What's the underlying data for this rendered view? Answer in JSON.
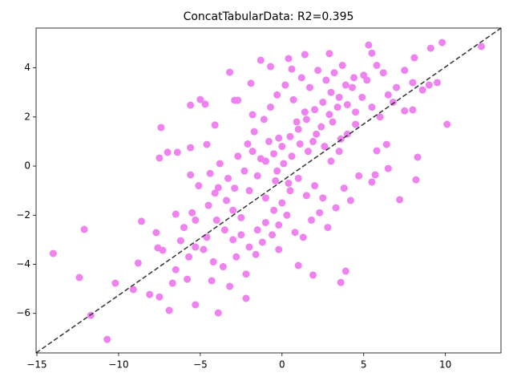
{
  "chart_data": {
    "type": "scatter",
    "title": "ConcatTabularData: R2=0.395",
    "color": "#ee82ee",
    "xlim": [
      -15.05,
      13.4
    ],
    "ylim": [
      -7.61,
      5.62
    ],
    "xticks": [
      {
        "value": -15,
        "label": "−15"
      },
      {
        "value": -10,
        "label": "−10"
      },
      {
        "value": -5,
        "label": "−5"
      },
      0,
      5,
      10
    ],
    "yticks": [
      {
        "value": -6,
        "label": "−6"
      },
      {
        "value": -4,
        "label": "−4"
      },
      {
        "value": -2,
        "label": "−2"
      },
      0,
      2,
      4
    ],
    "grid": false,
    "diagonal": {
      "x": [
        -15.05,
        13.4
      ],
      "y": [
        -7.61,
        5.62
      ],
      "color": "#333333"
    },
    "x": [
      -14.0,
      -12.4,
      -12.1,
      -11.7,
      -10.7,
      -10.2,
      -9.1,
      -8.8,
      -8.6,
      -8.1,
      -7.7,
      -7.6,
      -7.5,
      -7.4,
      -7.5,
      -7.3,
      -7.0,
      -6.9,
      -6.7,
      -6.5,
      -6.5,
      -6.4,
      -6.2,
      -5.8,
      -5.6,
      -5.6,
      -5.6,
      -5.3,
      -5.3,
      -5.0,
      -4.7,
      -4.6,
      -4.3,
      -3.9,
      -3.9,
      -4.1,
      -3.2,
      -2.9,
      -2.7,
      -2.2,
      -1.8,
      -1.9,
      -1.3,
      -0.7,
      -0.2,
      -0.2,
      0.4,
      0.6,
      1.4,
      1.9,
      2.9,
      3.9,
      5.3,
      5.5,
      7.2,
      8.2,
      8.3,
      9.8,
      10.1,
      12.2,
      9.5,
      9.1,
      8.1,
      8.0,
      7.5,
      5.8,
      6.4,
      5.7,
      5.5,
      6.5,
      3.6,
      1.0,
      -4.5,
      -4.0,
      -3.5,
      -3.0,
      -2.5,
      -2.0,
      -1.5,
      -1.0,
      -0.5,
      0,
      0.5,
      1.0,
      1.5,
      2.0,
      2.5,
      3.0,
      3.5,
      4.0,
      4.5,
      5.0,
      -3.0,
      -2.5,
      -2.0,
      -1.5,
      -1.0,
      -0.5,
      0,
      0.5,
      1.0,
      1.5,
      2.0,
      2.5,
      3.0,
      3.5,
      4.0,
      4.5,
      5.5,
      6.0,
      6.5,
      7.0,
      -4.8,
      -4.2,
      -3.6,
      -3.2,
      -2.8,
      -2.2,
      -1.6,
      -1.2,
      -0.6,
      -0.2,
      0.3,
      0.8,
      1.3,
      1.8,
      2.3,
      2.8,
      3.3,
      3.8,
      4.2,
      4.7,
      -5.5,
      -5.1,
      -4.4,
      -3.8,
      -3.3,
      -2.7,
      -2.1,
      -1.7,
      -1.1,
      -0.7,
      -0.3,
      0.2,
      0.7,
      1.2,
      1.7,
      2.2,
      2.7,
      3.2,
      3.7,
      4.3,
      -6.0,
      -5.7,
      -5.3,
      -4.6,
      -4.1,
      -3.4,
      -2.9,
      -2.3,
      -1.8,
      -1.3,
      -0.8,
      -0.4,
      0.1,
      0.6,
      1.1,
      1.6,
      2.1,
      2.6,
      3.1,
      3.6,
      -1.0,
      -0.3,
      0.4,
      0.9,
      1.4,
      1.9,
      2.4,
      2.9,
      3.4,
      3.9,
      4.4,
      4.9,
      5.2,
      5.8,
      6.2,
      6.8,
      7.5,
      8.0,
      8.6,
      9.0
    ],
    "y": [
      -3.56,
      -4.54,
      -2.58,
      -6.08,
      -7.06,
      -4.77,
      -5.03,
      -3.95,
      -2.25,
      -5.23,
      -2.71,
      -3.33,
      -5.33,
      1.57,
      0.33,
      -3.43,
      0.56,
      -5.88,
      -4.77,
      -1.96,
      -4.22,
      0.56,
      -3.04,
      -4.61,
      -0.36,
      0.75,
      2.48,
      -5.65,
      -3.3,
      2.71,
      2.52,
      0.88,
      -4.67,
      -5.98,
      -0.88,
      1.67,
      3.82,
      2.68,
      2.68,
      -5.39,
      2.09,
      3.37,
      4.31,
      4.05,
      1.14,
      -3.4,
      4.38,
      3.95,
      4.54,
      -4.44,
      4.58,
      -4.28,
      4.93,
      4.6,
      -1.37,
      -0.56,
      0.36,
      5.03,
      1.7,
      4.87,
      3.4,
      4.8,
      4.41,
      2.29,
      2.25,
      0.62,
      0.88,
      -0.36,
      -0.65,
      -0.1,
      -4.74,
      -4.05,
      -1.6,
      -2.2,
      -2.6,
      -1.8,
      -2.1,
      -1.0,
      -0.4,
      0.2,
      0.5,
      0.8,
      1.2,
      1.5,
      1.9,
      2.3,
      2.6,
      3.0,
      2.8,
      2.5,
      2.2,
      3.7,
      -3.0,
      -2.8,
      -3.3,
      -2.6,
      -2.3,
      -1.8,
      -1.5,
      -1.0,
      -0.5,
      -1.2,
      -0.8,
      -1.3,
      0.2,
      0.6,
      1.3,
      1.7,
      2.4,
      2.0,
      2.9,
      3.2,
      -3.4,
      -3.9,
      -4.1,
      -4.9,
      -3.7,
      -4.4,
      -3.6,
      -3.1,
      -2.8,
      -2.4,
      -2.0,
      -2.7,
      -2.9,
      -2.2,
      -1.9,
      -2.5,
      -1.7,
      -0.9,
      -1.4,
      -0.4,
      -1.9,
      -0.8,
      -0.3,
      0.1,
      -0.5,
      0.4,
      0.9,
      1.4,
      1.9,
      2.4,
      2.9,
      3.3,
      2.7,
      3.6,
      3.2,
      3.9,
      3.5,
      3.8,
      4.1,
      3.2,
      -2.5,
      -3.7,
      -2.2,
      -2.9,
      -1.1,
      -1.4,
      -0.9,
      -0.2,
      0.6,
      0.3,
      1.0,
      -0.6,
      0.1,
      0.4,
      0.9,
      0.6,
      1.3,
      0.8,
      1.8,
      1.1,
      -1.3,
      -0.2,
      -0.7,
      1.8,
      2.2,
      1.0,
      1.6,
      2.1,
      2.4,
      3.3,
      3.6,
      2.8,
      3.5,
      4.1,
      3.8,
      2.6,
      3.9,
      3.4,
      3.1,
      3.3
    ]
  }
}
